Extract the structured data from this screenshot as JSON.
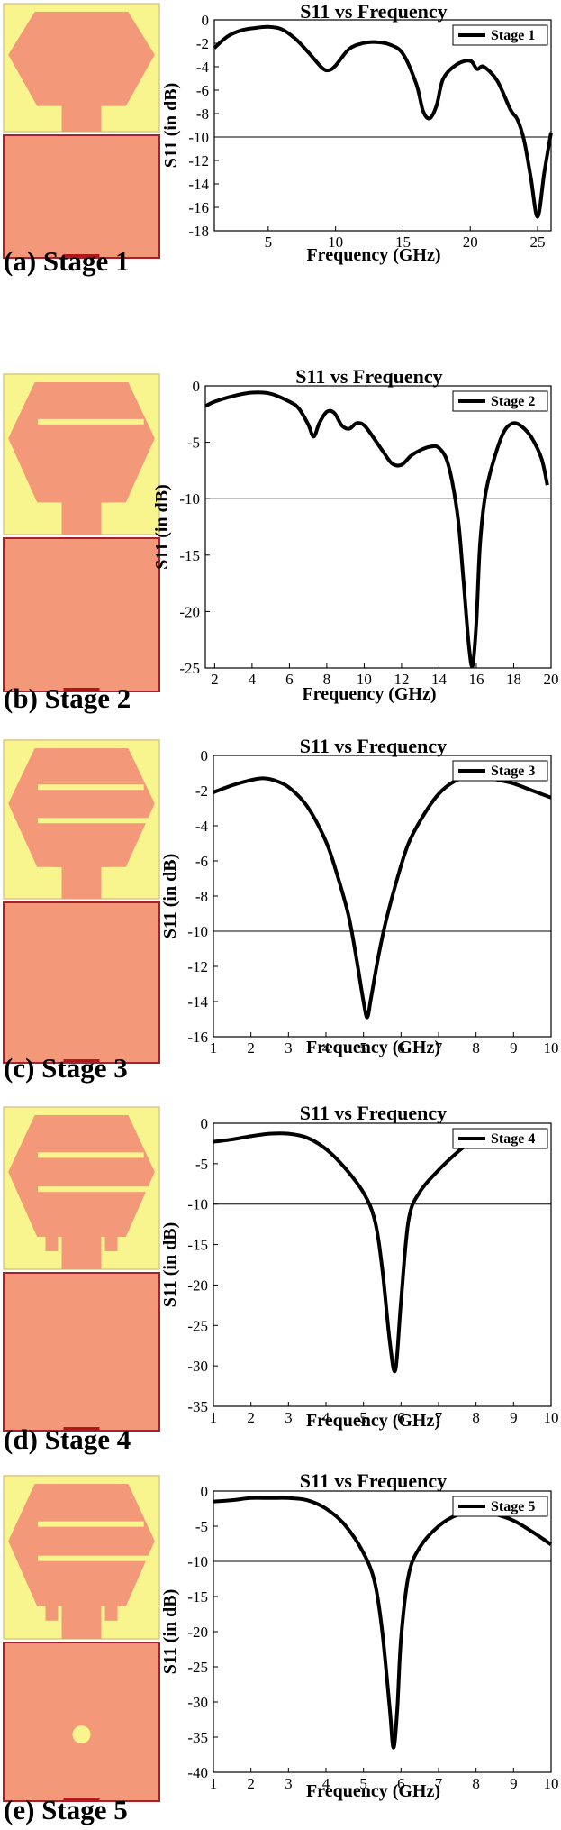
{
  "colors": {
    "substrate": "#f8f58e",
    "substrate_border": "#d8c98a",
    "patch": "#f4987a",
    "ground": "#f4987a",
    "ground_border": "#a8202a",
    "feed": "#b01818",
    "slot": "#f8f58e",
    "curve": "#000000",
    "ref_line": "#000000"
  },
  "panels": [
    {
      "caption": "(a) Stage 1",
      "stage": 1,
      "slots": 0,
      "stub_style": "basic",
      "ground_circle": false
    },
    {
      "caption": "(b) Stage 2",
      "stage": 2,
      "slots": 1,
      "stub_style": "basic",
      "ground_circle": false
    },
    {
      "caption": "(c) Stage 3",
      "stage": 3,
      "slots": 2,
      "stub_style": "basic",
      "ground_circle": false
    },
    {
      "caption": "(d) Stage 4",
      "stage": 4,
      "slots": 2,
      "stub_style": "hooks",
      "ground_circle": false
    },
    {
      "caption": "(e) Stage 5",
      "stage": 5,
      "slots": 2,
      "stub_style": "hooks",
      "ground_circle": true
    }
  ],
  "chart_data": [
    {
      "type": "line",
      "title": "S11 vs Frequency",
      "xlabel": "Frequency (GHz)",
      "ylabel": "S11 (in dB)",
      "xlim": [
        1,
        26
      ],
      "ylim": [
        -18,
        0
      ],
      "xticks": [
        5,
        10,
        15,
        20,
        25
      ],
      "yticks": [
        0,
        -2,
        -4,
        -6,
        -8,
        -10,
        -12,
        -14,
        -16,
        -18
      ],
      "ref_line": -10,
      "legend": "top-right",
      "series": [
        {
          "name": "Stage 1",
          "x": [
            1,
            2,
            3,
            4,
            5,
            6,
            7,
            8,
            9,
            9.5,
            10,
            11,
            12,
            13,
            14,
            15,
            16,
            16.5,
            17,
            17.5,
            18,
            19,
            20,
            20.5,
            21,
            22,
            23,
            23.5,
            24,
            24.5,
            25,
            25.5,
            26
          ],
          "y": [
            -2.4,
            -1.4,
            -0.9,
            -0.7,
            -0.6,
            -0.8,
            -1.6,
            -2.8,
            -4.1,
            -4.3,
            -3.9,
            -2.5,
            -2.0,
            -1.9,
            -2.1,
            -2.9,
            -5.5,
            -7.8,
            -8.4,
            -7.3,
            -5.0,
            -3.8,
            -3.5,
            -4.2,
            -4.0,
            -5.2,
            -7.7,
            -8.5,
            -10.3,
            -13.5,
            -16.8,
            -13.0,
            -9.6
          ]
        }
      ]
    },
    {
      "type": "line",
      "title": "S11 vs Frequency",
      "xlabel": "Frequency (GHz)",
      "ylabel": "S11 (in dB)",
      "xlim": [
        1.5,
        20
      ],
      "ylim": [
        -25,
        0
      ],
      "xticks": [
        2,
        4,
        6,
        8,
        10,
        12,
        14,
        16,
        18,
        20
      ],
      "yticks": [
        0,
        -5,
        -10,
        -15,
        -20,
        -25
      ],
      "ref_line": -10,
      "legend": "top-right",
      "series": [
        {
          "name": "Stage 2",
          "x": [
            1.5,
            2,
            3,
            4,
            5,
            6,
            6.5,
            7,
            7.3,
            7.6,
            8,
            8.4,
            8.8,
            9.2,
            9.6,
            10,
            10.5,
            11,
            11.5,
            12,
            12.5,
            13,
            13.5,
            14,
            14.5,
            15,
            15.3,
            15.6,
            15.8,
            16,
            16.2,
            16.5,
            17,
            17.5,
            18,
            18.5,
            19,
            19.5,
            19.8
          ],
          "y": [
            -1.8,
            -1.4,
            -0.9,
            -0.6,
            -0.7,
            -1.4,
            -2.0,
            -3.4,
            -4.5,
            -3.3,
            -2.3,
            -2.4,
            -3.5,
            -3.8,
            -3.3,
            -3.5,
            -4.6,
            -5.8,
            -6.9,
            -7.0,
            -6.2,
            -5.7,
            -5.4,
            -5.5,
            -7.0,
            -11.5,
            -17.0,
            -23.0,
            -24.8,
            -21.0,
            -14.0,
            -9.5,
            -6.2,
            -4.0,
            -3.3,
            -3.7,
            -4.7,
            -6.5,
            -8.8
          ]
        }
      ]
    },
    {
      "type": "line",
      "title": "S11 vs Frequency",
      "xlabel": "Frequency (GHz)",
      "ylabel": "S11 (in dB)",
      "xlim": [
        1,
        10
      ],
      "ylim": [
        -16,
        0
      ],
      "xticks": [
        1,
        2,
        3,
        4,
        5,
        6,
        7,
        8,
        9,
        10
      ],
      "yticks": [
        0,
        -2,
        -4,
        -6,
        -8,
        -10,
        -12,
        -14,
        -16
      ],
      "ref_line": -10,
      "legend": "top-right",
      "series": [
        {
          "name": "Stage 3",
          "x": [
            1,
            1.5,
            2,
            2.3,
            2.6,
            3,
            3.5,
            4,
            4.3,
            4.6,
            4.8,
            5,
            5.1,
            5.2,
            5.4,
            5.6,
            5.9,
            6.2,
            6.6,
            7,
            7.4,
            7.8,
            8.2,
            8.6,
            9,
            9.5,
            10
          ],
          "y": [
            -2.1,
            -1.7,
            -1.4,
            -1.3,
            -1.4,
            -1.8,
            -2.9,
            -4.9,
            -6.8,
            -9.1,
            -11.4,
            -14.0,
            -14.9,
            -13.8,
            -11.4,
            -9.4,
            -7.0,
            -5.0,
            -3.4,
            -2.2,
            -1.5,
            -1.2,
            -1.2,
            -1.4,
            -1.6,
            -2.0,
            -2.4
          ]
        }
      ]
    },
    {
      "type": "line",
      "title": "S11 vs Frequency",
      "xlabel": "Frequency (GHz)",
      "ylabel": "S11 (in dB)",
      "xlim": [
        1,
        10
      ],
      "ylim": [
        -35,
        0
      ],
      "xticks": [
        1,
        2,
        3,
        4,
        5,
        6,
        7,
        8,
        9,
        10
      ],
      "yticks": [
        0,
        -5,
        -10,
        -15,
        -20,
        -25,
        -30,
        -35
      ],
      "ref_line": -10,
      "legend": "top-right",
      "series": [
        {
          "name": "Stage 4",
          "x": [
            1,
            1.5,
            2,
            2.5,
            3,
            3.5,
            4,
            4.5,
            5,
            5.3,
            5.5,
            5.7,
            5.85,
            6,
            6.2,
            6.5,
            7,
            7.5,
            7.8
          ],
          "y": [
            -2.3,
            -2.0,
            -1.6,
            -1.3,
            -1.3,
            -1.8,
            -3.2,
            -5.5,
            -8.6,
            -12.0,
            -18.0,
            -27.0,
            -30.5,
            -22.0,
            -12.0,
            -8.5,
            -5.8,
            -3.6,
            -2.5
          ]
        }
      ]
    },
    {
      "type": "line",
      "title": "S11 vs Frequency",
      "xlabel": "Frequency (GHz)",
      "ylabel": "S11 (in dB)",
      "xlim": [
        1,
        10
      ],
      "ylim": [
        -40,
        0
      ],
      "xticks": [
        1,
        2,
        3,
        4,
        5,
        6,
        7,
        8,
        9,
        10
      ],
      "yticks": [
        0,
        -5,
        -10,
        -15,
        -20,
        -25,
        -30,
        -35,
        -40
      ],
      "ref_line": -10,
      "legend": "top-right",
      "series": [
        {
          "name": "Stage 5",
          "x": [
            1,
            1.5,
            2,
            2.5,
            3,
            3.5,
            4,
            4.5,
            5,
            5.3,
            5.5,
            5.7,
            5.8,
            5.9,
            6,
            6.2,
            6.5,
            7,
            7.5,
            8,
            8.5,
            9,
            9.5,
            10
          ],
          "y": [
            -1.5,
            -1.3,
            -1.0,
            -1.0,
            -1.0,
            -1.3,
            -2.5,
            -4.8,
            -8.8,
            -13.0,
            -20.0,
            -31.0,
            -36.5,
            -31.0,
            -21.0,
            -12.0,
            -8.0,
            -5.0,
            -3.4,
            -3.0,
            -3.3,
            -4.2,
            -5.8,
            -7.6
          ]
        }
      ]
    }
  ]
}
